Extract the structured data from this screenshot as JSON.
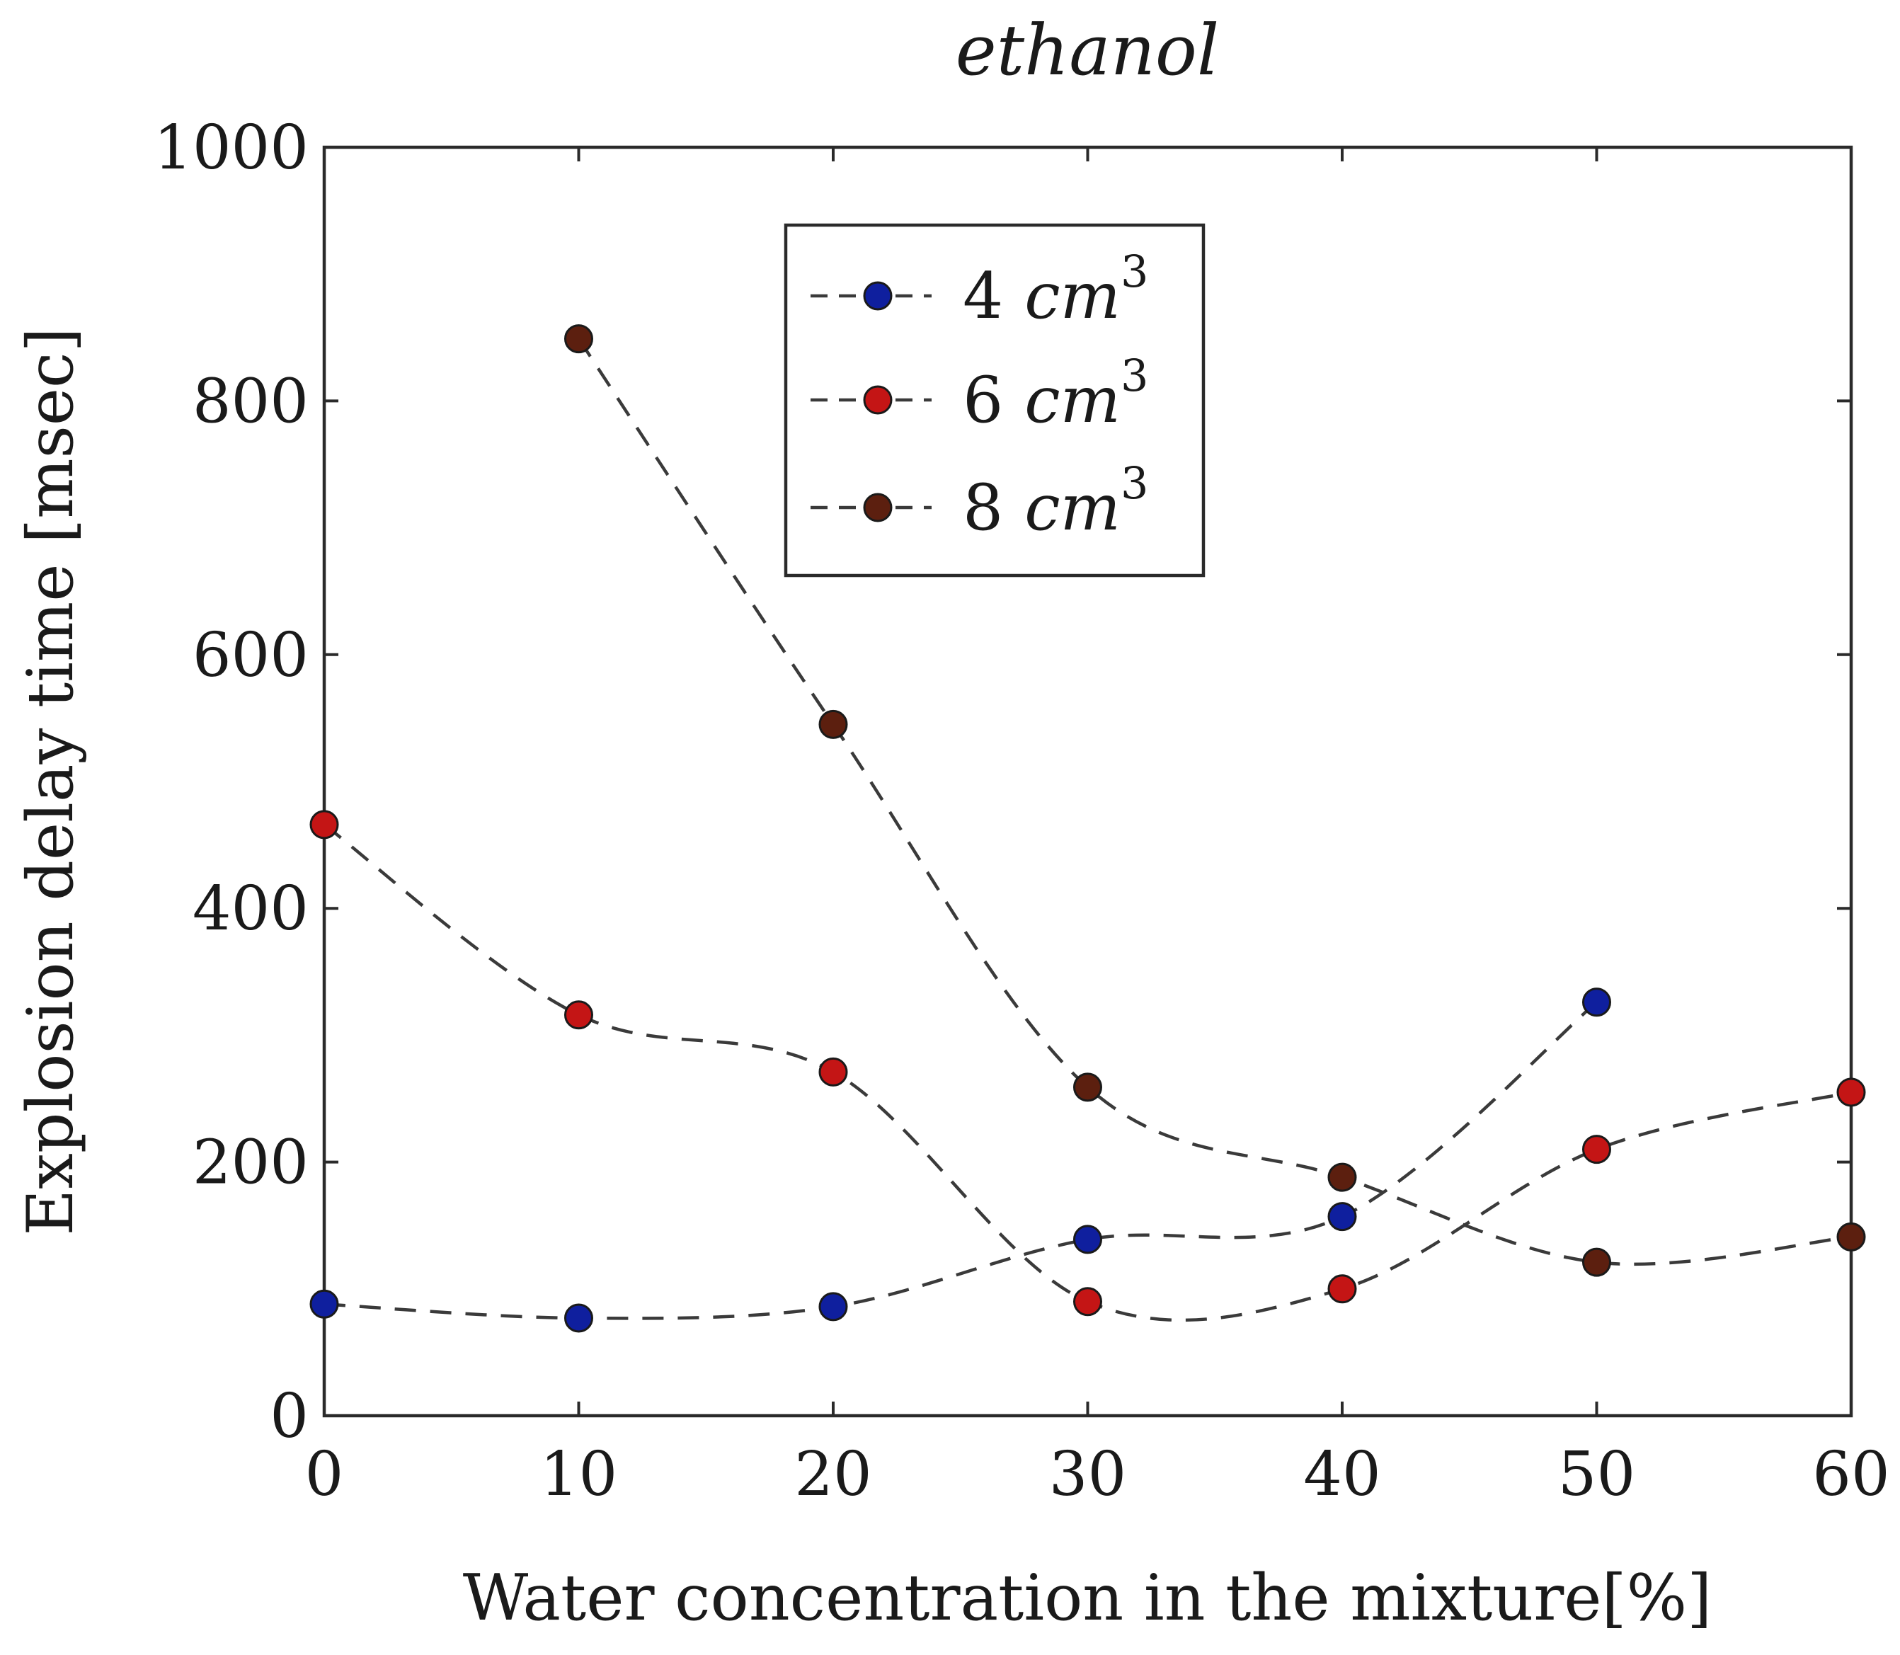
{
  "chart_data": {
    "type": "line",
    "title": "ethanol",
    "xlabel": "Water concentration in the mixture[%]",
    "ylabel": "Explosion delay time [msec]",
    "xlim": [
      0,
      60
    ],
    "ylim": [
      0,
      1000
    ],
    "xticks": [
      0,
      10,
      20,
      30,
      40,
      50,
      60
    ],
    "yticks": [
      0,
      200,
      400,
      600,
      800,
      1000
    ],
    "grid": false,
    "legend_position": "top-center",
    "series": [
      {
        "name": "4",
        "unit": "cm",
        "unit_exponent": "3",
        "color": "#0f1f9e",
        "x": [
          0,
          10,
          20,
          30,
          40,
          50
        ],
        "values": [
          88,
          77,
          86,
          139,
          157,
          326
        ]
      },
      {
        "name": "6",
        "unit": "cm",
        "unit_exponent": "3",
        "color": "#c41515",
        "x": [
          0,
          10,
          20,
          30,
          40,
          50,
          60
        ],
        "values": [
          466,
          316,
          271,
          90,
          100,
          210,
          255
        ]
      },
      {
        "name": "8",
        "unit": "cm",
        "unit_exponent": "3",
        "color": "#5c1f0f",
        "x": [
          10,
          20,
          30,
          40,
          50,
          60
        ],
        "values": [
          849,
          545,
          259,
          188,
          121,
          141
        ]
      }
    ]
  }
}
